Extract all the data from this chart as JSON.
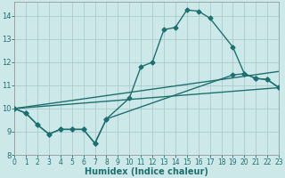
{
  "xlabel": "Humidex (Indice chaleur)",
  "background_color": "#cce8e8",
  "grid_color": "#aacccc",
  "line_color": "#1e7070",
  "xlim": [
    0,
    23
  ],
  "ylim": [
    8,
    14.6
  ],
  "yticks": [
    8,
    9,
    10,
    11,
    12,
    13,
    14
  ],
  "xticks": [
    0,
    1,
    2,
    3,
    4,
    5,
    6,
    7,
    8,
    9,
    10,
    11,
    12,
    13,
    14,
    15,
    16,
    17,
    18,
    19,
    20,
    21,
    22,
    23
  ],
  "line1_x": [
    0,
    1,
    2,
    3,
    4,
    5,
    6,
    7,
    8,
    10,
    11,
    12,
    13,
    14,
    15,
    16,
    17,
    19,
    20,
    21,
    22,
    23
  ],
  "line1_y": [
    10.0,
    9.8,
    9.3,
    8.9,
    9.1,
    9.1,
    9.1,
    8.5,
    9.55,
    10.45,
    11.8,
    12.0,
    13.4,
    13.5,
    14.25,
    14.2,
    13.9,
    12.65,
    11.5,
    11.3,
    11.25,
    10.9
  ],
  "line2_x": [
    0,
    1,
    2,
    3,
    4,
    5,
    6,
    7,
    8,
    19,
    20,
    21,
    22,
    23
  ],
  "line2_y": [
    10.0,
    9.8,
    9.3,
    8.9,
    9.1,
    9.1,
    9.1,
    8.5,
    9.55,
    11.45,
    11.5,
    11.3,
    11.25,
    10.9
  ],
  "line3_x": [
    0,
    23
  ],
  "line3_y": [
    10.0,
    11.6
  ],
  "line4_x": [
    0,
    23
  ],
  "line4_y": [
    10.0,
    10.9
  ],
  "marker_size": 2.5,
  "line_width": 1.0,
  "xlabel_fontsize": 7,
  "tick_fontsize": 5.5
}
